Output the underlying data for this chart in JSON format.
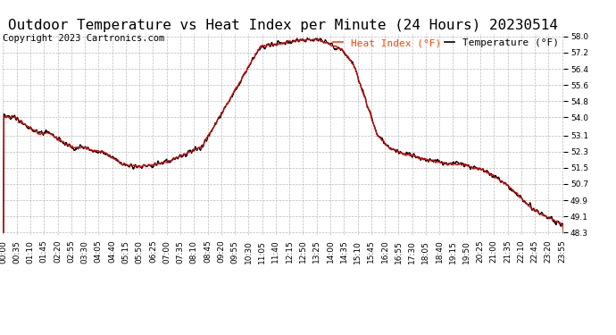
{
  "title": "Outdoor Temperature vs Heat Index per Minute (24 Hours) 20230514",
  "copyright": "Copyright 2023 Cartronics.com",
  "legend_heat": "Heat Index (°F)",
  "legend_temp": "Temperature (°F)",
  "heat_color": "#dd0000",
  "temp_color": "#000000",
  "legend_heat_color": "#ff4400",
  "ylim_min": 48.2,
  "ylim_max": 58.15,
  "yticks": [
    48.3,
    49.1,
    49.9,
    50.7,
    51.5,
    52.3,
    53.1,
    54.0,
    54.8,
    55.6,
    56.4,
    57.2,
    58.0
  ],
  "bg_color": "#ffffff",
  "grid_color": "#bbbbbb",
  "title_fontsize": 11.5,
  "copyright_fontsize": 7.5,
  "legend_fontsize": 8,
  "tick_fontsize": 6.5,
  "tick_step": 35,
  "total_minutes": 1440
}
